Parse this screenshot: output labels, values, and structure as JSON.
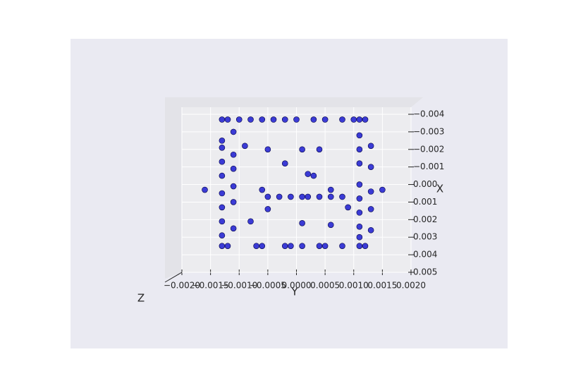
{
  "chart_data": {
    "type": "scatter",
    "xlabel": "Y",
    "ylabel": "X",
    "zlabel": "Z",
    "xlim": [
      -0.002,
      0.002
    ],
    "xticks": [
      {
        "value": -0.002,
        "label": "−0.0020"
      },
      {
        "value": -0.0015,
        "label": "−0.0015"
      },
      {
        "value": -0.001,
        "label": "−0.0010"
      },
      {
        "value": -0.0005,
        "label": "−0.0005"
      },
      {
        "value": 0,
        "label": "0.0000"
      },
      {
        "value": 0.0005,
        "label": "0.0005"
      },
      {
        "value": 0.001,
        "label": "0.0010"
      },
      {
        "value": 0.0015,
        "label": "0.0015"
      },
      {
        "value": 0.002,
        "label": "0.0020"
      }
    ],
    "ylim": [
      -0.004,
      0.005
    ],
    "yticks": [
      {
        "value": -0.004,
        "label": "−0.004"
      },
      {
        "value": -0.003,
        "label": "−0.003"
      },
      {
        "value": -0.002,
        "label": "−0.002"
      },
      {
        "value": -0.001,
        "label": "−0.001"
      },
      {
        "value": 0,
        "label": "0.000"
      },
      {
        "value": 0.001,
        "label": "0.001"
      },
      {
        "value": 0.002,
        "label": "0.002"
      },
      {
        "value": 0.003,
        "label": "0.003"
      },
      {
        "value": 0.004,
        "label": "0.004"
      },
      {
        "value": 0.005,
        "label": "0.005"
      }
    ],
    "grid": true,
    "series": [
      {
        "color": "#0000cc",
        "x": [
          -0.0013,
          -0.0012,
          -0.001,
          -0.0008,
          -0.0006,
          -0.0004,
          -0.0002,
          0,
          0.0003,
          0.0005,
          0.0008,
          0.001,
          0.0011,
          0.0012,
          -0.0013,
          -0.0012,
          -0.0007,
          -0.0006,
          -0.0002,
          -0.0001,
          0.0001,
          0.0004,
          0.0005,
          0.0008,
          0.0011,
          0.0012,
          -0.0013,
          -0.0013,
          -0.0013,
          -0.0013,
          -0.0013,
          -0.0013,
          -0.0013,
          -0.0013,
          -0.0011,
          -0.0011,
          -0.0011,
          -0.0011,
          -0.0011,
          -0.0011,
          0.0011,
          0.0011,
          0.0011,
          0.0011,
          0.0011,
          0.0011,
          0.0011,
          0.0011,
          0.0013,
          0.0013,
          0.0013,
          0.0013,
          0.0013,
          -0.0005,
          -0.0003,
          -0.0001,
          0.0001,
          0.0002,
          0.0004,
          0.0006,
          0.0008,
          -0.0016,
          0.0015,
          -0.0006,
          0.0006,
          -0.0009,
          -0.0005,
          0.0001,
          0.0004,
          0.0003,
          0.0002,
          -0.0002,
          0.0006,
          -0.0005,
          0.0001,
          -0.0008,
          0.0009
        ],
        "values": [
          -0.0037,
          -0.0037,
          -0.0037,
          -0.0037,
          -0.0037,
          -0.0037,
          -0.0037,
          -0.0037,
          -0.0037,
          -0.0037,
          -0.0037,
          -0.0037,
          -0.0037,
          -0.0037,
          0.0035,
          0.0035,
          0.0035,
          0.0035,
          0.0035,
          0.0035,
          0.0035,
          0.0035,
          0.0035,
          0.0035,
          0.0035,
          0.0035,
          -0.0025,
          -0.0021,
          -0.0013,
          -0.0005,
          0.0005,
          0.0013,
          0.0021,
          0.0029,
          -0.003,
          -0.0017,
          -0.0009,
          0.0001,
          0.001,
          0.0025,
          -0.0028,
          -0.002,
          -0.0012,
          0,
          0.0008,
          0.0016,
          0.0024,
          0.003,
          -0.0022,
          -0.001,
          0.0004,
          0.0014,
          0.0026,
          0.0007,
          0.0007,
          0.0007,
          0.0007,
          0.0007,
          0.0007,
          0.0007,
          0.0007,
          0.0003,
          0.0003,
          0.0003,
          0.0003,
          -0.0022,
          -0.002,
          -0.002,
          -0.002,
          -0.0005,
          -0.0006,
          -0.0012,
          0.0023,
          0.0014,
          0.0022,
          0.0021,
          0.0013
        ]
      }
    ]
  }
}
